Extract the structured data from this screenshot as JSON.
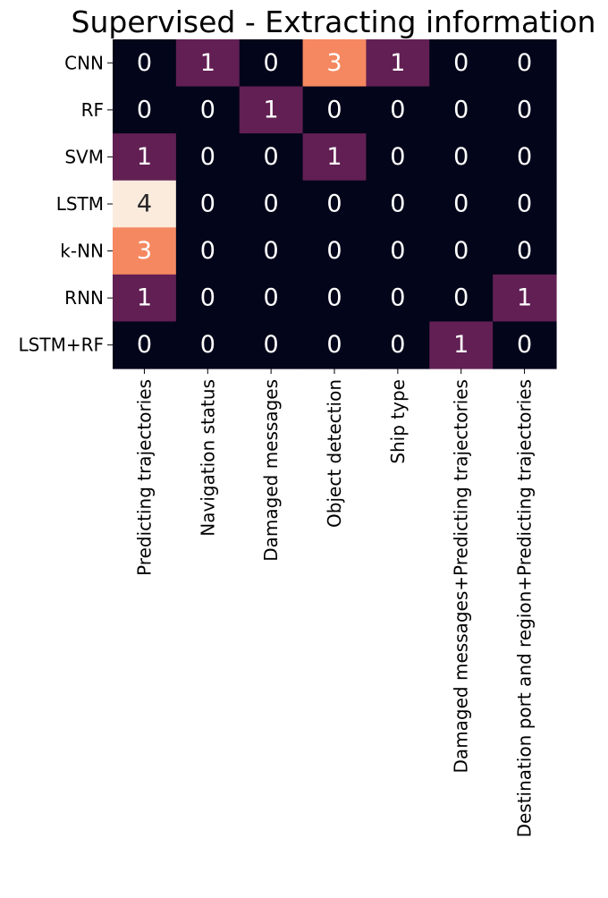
{
  "chart_data": {
    "type": "heatmap",
    "title": "Supervised - Extracting information",
    "xlabel": "",
    "ylabel": "",
    "rows": [
      "CNN",
      "RF",
      "SVM",
      "LSTM",
      "k-NN",
      "RNN",
      "LSTM+RF"
    ],
    "columns": [
      "Predicting trajectories",
      "Navigation status",
      "Damaged messages",
      "Object detection",
      "Ship type",
      "Damaged messages+Predicting trajectories",
      "Destination port and region+Predicting trajectories"
    ],
    "values": [
      [
        0,
        1,
        0,
        3,
        1,
        0,
        0
      ],
      [
        0,
        0,
        1,
        0,
        0,
        0,
        0
      ],
      [
        1,
        0,
        0,
        1,
        0,
        0,
        0
      ],
      [
        4,
        0,
        0,
        0,
        0,
        0,
        0
      ],
      [
        3,
        0,
        0,
        0,
        0,
        0,
        0
      ],
      [
        1,
        0,
        0,
        0,
        0,
        0,
        1
      ],
      [
        0,
        0,
        0,
        0,
        0,
        1,
        0
      ]
    ],
    "value_range": [
      0,
      4
    ],
    "colorbar": false,
    "annotated": true,
    "colors": {
      "0": "#03051a",
      "1": "#611f53",
      "3": "#f58860",
      "4": "#faebdd",
      "label_light": "#ffffff",
      "label_dark": "#262626"
    }
  }
}
